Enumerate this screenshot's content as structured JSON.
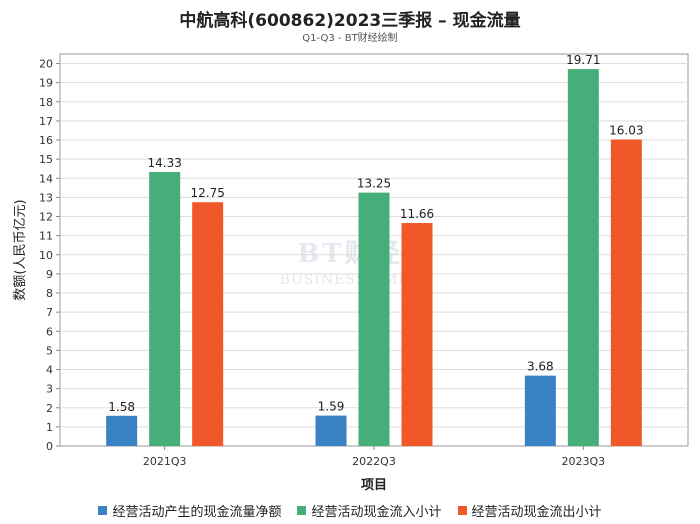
{
  "chart_data": {
    "type": "bar",
    "title": "中航高科(600862)2023三季报 – 现金流量",
    "subtitle": "Q1-Q3 - BT财经绘制",
    "xlabel": "项目",
    "ylabel": "数额(人民币亿元)",
    "categories": [
      "2021Q3",
      "2022Q3",
      "2023Q3"
    ],
    "ylim": [
      0,
      20.5
    ],
    "yticks": [
      0,
      1,
      2,
      3,
      4,
      5,
      6,
      7,
      8,
      9,
      10,
      11,
      12,
      13,
      14,
      15,
      16,
      17,
      18,
      19,
      20
    ],
    "grid": true,
    "legend_position": "bottom",
    "series": [
      {
        "name": "经营活动产生的现金流量净额",
        "color": "#3a82c4",
        "values": [
          1.58,
          1.59,
          3.68
        ]
      },
      {
        "name": "经营活动现金流入小计",
        "color": "#46ae78",
        "values": [
          14.33,
          13.25,
          19.71
        ]
      },
      {
        "name": "经营活动现金流出小计",
        "color": "#f0582a",
        "values": [
          12.75,
          11.66,
          16.03
        ]
      }
    ],
    "watermark": "BT财经 BUSINESSTIMES"
  }
}
